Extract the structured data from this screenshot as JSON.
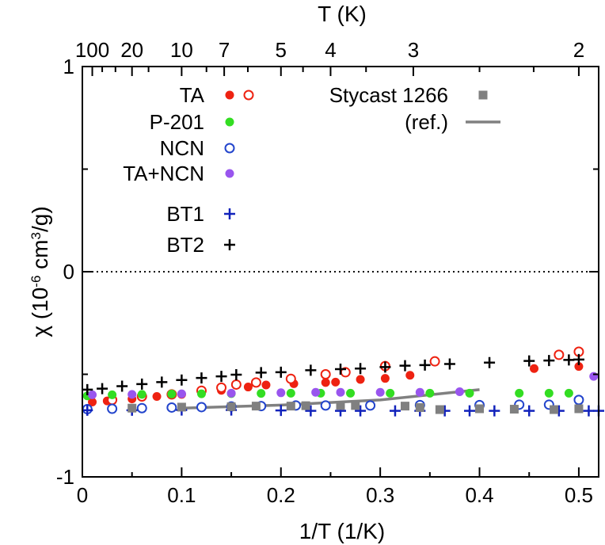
{
  "chart_data": {
    "type": "scatter",
    "xlabel": "1/T  (1/K)",
    "ylabel_prefix": "χ  (10",
    "ylabel_exp1": "-6",
    "ylabel_mid": " cm",
    "ylabel_exp2": "3",
    "ylabel_suffix": "/g)",
    "top_xlabel": "T (K)",
    "xlim": [
      0,
      0.52
    ],
    "ylim": [
      -1,
      1
    ],
    "x_ticks": [
      {
        "v": 0,
        "label": "0"
      },
      {
        "v": 0.1,
        "label": "0.1"
      },
      {
        "v": 0.2,
        "label": "0.2"
      },
      {
        "v": 0.3,
        "label": "0.3"
      },
      {
        "v": 0.4,
        "label": "0.4"
      },
      {
        "v": 0.5,
        "label": "0.5"
      }
    ],
    "y_ticks": [
      {
        "v": -1,
        "label": "-1"
      },
      {
        "v": 0,
        "label": "0"
      },
      {
        "v": 1,
        "label": "1"
      }
    ],
    "top_ticks": [
      {
        "T": 100,
        "label": "100"
      },
      {
        "T": 20,
        "label": "20"
      },
      {
        "T": 10,
        "label": "10"
      },
      {
        "T": 7,
        "label": "7"
      },
      {
        "T": 5,
        "label": "5"
      },
      {
        "T": 4,
        "label": "4"
      },
      {
        "T": 3,
        "label": "3"
      },
      {
        "T": 2,
        "label": "2"
      }
    ],
    "top_minor_ticks_T": [
      50,
      30,
      15,
      8,
      6,
      4.5,
      3.5,
      2.5,
      2.2
    ],
    "zero_line": true,
    "series": [
      {
        "name": "TA",
        "marker": "circle-filled",
        "color": "#ee2211",
        "points": [
          [
            0.01,
            -0.635
          ],
          [
            0.025,
            -0.63
          ],
          [
            0.05,
            -0.62
          ],
          [
            0.075,
            -0.608
          ],
          [
            0.1,
            -0.598
          ],
          [
            0.12,
            -0.588
          ],
          [
            0.14,
            -0.578
          ],
          [
            0.167,
            -0.562
          ],
          [
            0.185,
            -0.552
          ],
          [
            0.213,
            -0.546
          ],
          [
            0.245,
            -0.54
          ],
          [
            0.255,
            -0.538
          ],
          [
            0.28,
            -0.525
          ],
          [
            0.305,
            -0.52
          ],
          [
            0.33,
            -0.505
          ],
          [
            0.455,
            -0.472
          ],
          [
            0.5,
            -0.462
          ]
        ]
      },
      {
        "name": "TA (open)",
        "marker": "circle-open",
        "color": "#ee2211",
        "points": [
          [
            0.03,
            -0.625
          ],
          [
            0.06,
            -0.608
          ],
          [
            0.09,
            -0.598
          ],
          [
            0.12,
            -0.58
          ],
          [
            0.14,
            -0.565
          ],
          [
            0.155,
            -0.55
          ],
          [
            0.175,
            -0.54
          ],
          [
            0.21,
            -0.522
          ],
          [
            0.245,
            -0.5
          ],
          [
            0.265,
            -0.49
          ],
          [
            0.305,
            -0.46
          ],
          [
            0.355,
            -0.437
          ],
          [
            0.48,
            -0.405
          ],
          [
            0.5,
            -0.39
          ]
        ]
      },
      {
        "name": "P-201",
        "marker": "circle-filled",
        "color": "#33dd22",
        "points": [
          [
            0.005,
            -0.605
          ],
          [
            0.03,
            -0.6
          ],
          [
            0.06,
            -0.598
          ],
          [
            0.09,
            -0.596
          ],
          [
            0.12,
            -0.595
          ],
          [
            0.15,
            -0.594
          ],
          [
            0.18,
            -0.593
          ],
          [
            0.21,
            -0.592
          ],
          [
            0.24,
            -0.592
          ],
          [
            0.27,
            -0.592
          ],
          [
            0.31,
            -0.592
          ],
          [
            0.35,
            -0.592
          ],
          [
            0.39,
            -0.592
          ],
          [
            0.44,
            -0.592
          ],
          [
            0.47,
            -0.592
          ],
          [
            0.49,
            -0.592
          ]
        ]
      },
      {
        "name": "NCN",
        "marker": "circle-open",
        "color": "#2244cc",
        "points": [
          [
            0.005,
            -0.67
          ],
          [
            0.03,
            -0.668
          ],
          [
            0.06,
            -0.665
          ],
          [
            0.09,
            -0.662
          ],
          [
            0.12,
            -0.66
          ],
          [
            0.15,
            -0.657
          ],
          [
            0.18,
            -0.655
          ],
          [
            0.215,
            -0.652
          ],
          [
            0.245,
            -0.652
          ],
          [
            0.29,
            -0.652
          ],
          [
            0.34,
            -0.65
          ],
          [
            0.4,
            -0.65
          ],
          [
            0.44,
            -0.648
          ],
          [
            0.47,
            -0.648
          ],
          [
            0.5,
            -0.625
          ]
        ]
      },
      {
        "name": "TA+NCN",
        "marker": "circle-filled",
        "color": "#9955ee",
        "points": [
          [
            0.01,
            -0.6
          ],
          [
            0.05,
            -0.598
          ],
          [
            0.1,
            -0.595
          ],
          [
            0.15,
            -0.592
          ],
          [
            0.2,
            -0.59
          ],
          [
            0.235,
            -0.588
          ],
          [
            0.26,
            -0.588
          ],
          [
            0.3,
            -0.588
          ],
          [
            0.34,
            -0.588
          ],
          [
            0.38,
            -0.585
          ],
          [
            0.515,
            -0.51
          ]
        ]
      },
      {
        "name": "BT1",
        "marker": "plus",
        "color": "#1122bb",
        "points": [
          [
            0.005,
            -0.675
          ],
          [
            0.05,
            -0.675
          ],
          [
            0.1,
            -0.674
          ],
          [
            0.15,
            -0.674
          ],
          [
            0.2,
            -0.676
          ],
          [
            0.23,
            -0.678
          ],
          [
            0.26,
            -0.678
          ],
          [
            0.28,
            -0.678
          ],
          [
            0.315,
            -0.678
          ],
          [
            0.34,
            -0.678
          ],
          [
            0.365,
            -0.678
          ],
          [
            0.39,
            -0.678
          ],
          [
            0.415,
            -0.678
          ],
          [
            0.45,
            -0.678
          ],
          [
            0.48,
            -0.678
          ],
          [
            0.51,
            -0.678
          ],
          [
            0.52,
            -0.678
          ]
        ]
      },
      {
        "name": "BT2",
        "marker": "plus",
        "color": "#000000",
        "points": [
          [
            0.005,
            -0.575
          ],
          [
            0.02,
            -0.57
          ],
          [
            0.04,
            -0.558
          ],
          [
            0.06,
            -0.548
          ],
          [
            0.08,
            -0.538
          ],
          [
            0.1,
            -0.528
          ],
          [
            0.12,
            -0.518
          ],
          [
            0.14,
            -0.51
          ],
          [
            0.155,
            -0.502
          ],
          [
            0.18,
            -0.492
          ],
          [
            0.2,
            -0.49
          ],
          [
            0.23,
            -0.48
          ],
          [
            0.26,
            -0.475
          ],
          [
            0.28,
            -0.472
          ],
          [
            0.305,
            -0.465
          ],
          [
            0.325,
            -0.458
          ],
          [
            0.345,
            -0.455
          ],
          [
            0.37,
            -0.45
          ],
          [
            0.41,
            -0.443
          ],
          [
            0.45,
            -0.435
          ],
          [
            0.47,
            -0.433
          ],
          [
            0.49,
            -0.43
          ],
          [
            0.5,
            -0.428
          ]
        ]
      },
      {
        "name": "Stycast 1266",
        "marker": "square",
        "color": "#808080",
        "points": [
          [
            0.05,
            -0.665
          ],
          [
            0.1,
            -0.66
          ],
          [
            0.15,
            -0.658
          ],
          [
            0.175,
            -0.655
          ],
          [
            0.21,
            -0.655
          ],
          [
            0.225,
            -0.653
          ],
          [
            0.26,
            -0.652
          ],
          [
            0.275,
            -0.652
          ],
          [
            0.325,
            -0.655
          ],
          [
            0.34,
            -0.662
          ],
          [
            0.36,
            -0.672
          ],
          [
            0.4,
            -0.668
          ],
          [
            0.435,
            -0.67
          ],
          [
            0.475,
            -0.672
          ],
          [
            0.5,
            -0.668
          ]
        ]
      }
    ],
    "ref_line": {
      "name": "(ref.)",
      "color": "#808080",
      "points": [
        [
          0.1,
          -0.665
        ],
        [
          0.2,
          -0.65
        ],
        [
          0.3,
          -0.625
        ],
        [
          0.4,
          -0.575
        ]
      ]
    },
    "legend": [
      {
        "label": "TA",
        "markers": [
          "circle-filled",
          "circle-open"
        ],
        "color": "#ee2211"
      },
      {
        "label": "P-201",
        "markers": [
          "circle-filled"
        ],
        "color": "#33dd22"
      },
      {
        "label": "NCN",
        "markers": [
          "circle-open"
        ],
        "color": "#2244cc"
      },
      {
        "label": "TA+NCN",
        "markers": [
          "circle-filled"
        ],
        "color": "#9955ee"
      },
      {
        "label": "BT1",
        "markers": [
          "plus"
        ],
        "color": "#1122bb"
      },
      {
        "label": "BT2",
        "markers": [
          "plus"
        ],
        "color": "#000000"
      },
      {
        "label": "Stycast 1266",
        "markers": [
          "square"
        ],
        "color": "#808080"
      },
      {
        "label": "(ref.)",
        "markers": [
          "line"
        ],
        "color": "#808080"
      }
    ]
  }
}
